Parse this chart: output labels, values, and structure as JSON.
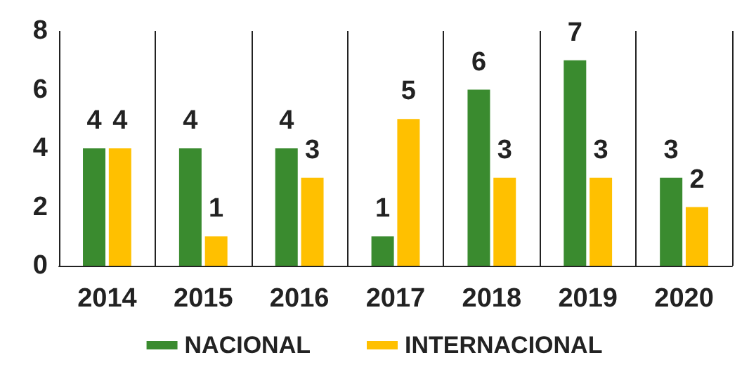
{
  "chart_data": {
    "type": "bar",
    "categories": [
      "2014",
      "2015",
      "2016",
      "2017",
      "2018",
      "2019",
      "2020"
    ],
    "series": [
      {
        "name": "NACIONAL",
        "color": "#3a8b2f",
        "values": [
          4,
          4,
          4,
          1,
          6,
          7,
          3
        ]
      },
      {
        "name": "INTERNACIONAL",
        "color": "#ffc000",
        "values": [
          4,
          1,
          3,
          5,
          3,
          3,
          2
        ]
      }
    ],
    "ylim": [
      0,
      8
    ],
    "yticks": [
      0,
      2,
      4,
      6,
      8
    ],
    "grid": "x",
    "data_labels": true,
    "legend": "bottom"
  }
}
